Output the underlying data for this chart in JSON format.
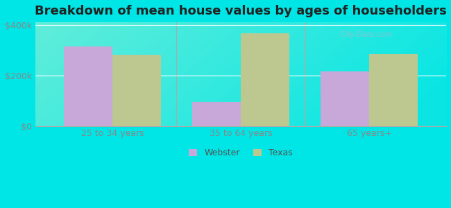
{
  "title": "Breakdown of mean house values by ages of householders",
  "categories": [
    "25 to 34 years",
    "35 to 64 years",
    "65 years+"
  ],
  "webster_values": [
    315000,
    95000,
    215000
  ],
  "texas_values": [
    280000,
    365000,
    285000
  ],
  "webster_color": "#c8a8d8",
  "texas_color": "#bcc890",
  "background_color": "#00e5e5",
  "plot_bg_start": "#e8f5e0",
  "plot_bg_end": "#f8fff5",
  "yticks": [
    0,
    200000,
    400000
  ],
  "ytick_labels": [
    "$0",
    "$200k",
    "$400k"
  ],
  "ylim": [
    0,
    410000
  ],
  "legend_labels": [
    "Webster",
    "Texas"
  ],
  "bar_width": 0.38,
  "title_fontsize": 13,
  "tick_fontsize": 9,
  "legend_fontsize": 9,
  "watermark_text": "  City-Data.com"
}
